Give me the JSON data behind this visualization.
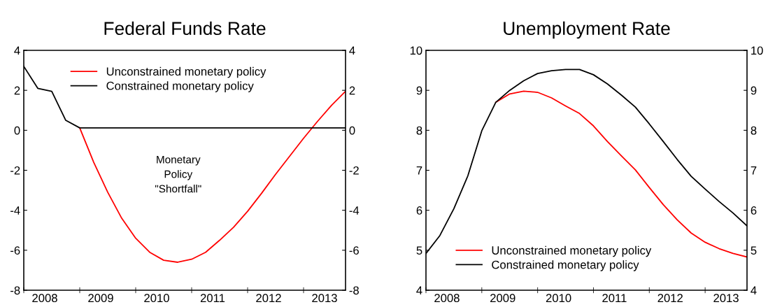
{
  "chart_data": [
    {
      "type": "line",
      "title": "Federal Funds Rate",
      "x": [
        2008,
        2008.25,
        2008.5,
        2008.75,
        2009,
        2009.25,
        2009.5,
        2009.75,
        2010,
        2010.25,
        2010.5,
        2010.75,
        2011,
        2011.25,
        2011.5,
        2011.75,
        2012,
        2012.25,
        2012.5,
        2012.75,
        2013,
        2013.25,
        2013.5,
        2013.75
      ],
      "series": [
        {
          "name": "Unconstrained monetary policy",
          "color": "#ff0000",
          "values": [
            null,
            null,
            null,
            null,
            0.12,
            -1.6,
            -3.1,
            -4.4,
            -5.4,
            -6.1,
            -6.5,
            -6.6,
            -6.45,
            -6.1,
            -5.5,
            -4.85,
            -4.05,
            -3.15,
            -2.2,
            -1.3,
            -0.4,
            0.45,
            1.25,
            1.95
          ]
        },
        {
          "name": "Constrained monetary policy",
          "color": "#000000",
          "values": [
            3.2,
            2.1,
            1.95,
            0.5,
            0.12,
            0.12,
            0.12,
            0.12,
            0.12,
            0.12,
            0.12,
            0.12,
            0.12,
            0.12,
            0.12,
            0.12,
            0.12,
            0.12,
            0.12,
            0.12,
            0.12,
            0.12,
            0.12,
            0.12
          ]
        }
      ],
      "xlim": [
        2008,
        2013.75
      ],
      "xticks": [
        {
          "value": 2008.375,
          "label": "2008"
        },
        {
          "value": 2009.375,
          "label": "2009"
        },
        {
          "value": 2010.375,
          "label": "2010"
        },
        {
          "value": 2011.375,
          "label": "2011"
        },
        {
          "value": 2012.375,
          "label": "2012"
        },
        {
          "value": 2013.375,
          "label": "2013"
        },
        {
          "value": 2008,
          "label": null
        },
        {
          "value": 2009,
          "label": null
        },
        {
          "value": 2010,
          "label": null
        },
        {
          "value": 2011,
          "label": null
        },
        {
          "value": 2012,
          "label": null
        },
        {
          "value": 2013,
          "label": null
        }
      ],
      "ylim": [
        -8,
        4
      ],
      "yticks": [
        -8,
        -6,
        -4,
        -2,
        0,
        2,
        4
      ],
      "y2lim": [
        -8,
        4
      ],
      "y2ticks": [
        -8,
        -6,
        -4,
        -2,
        0,
        2,
        4
      ],
      "annotations": [
        "Monetary\nPolicy\n\"Shortfall\""
      ],
      "legend": "top",
      "grid": false
    },
    {
      "type": "line",
      "title": "Unemployment Rate",
      "x": [
        2008,
        2008.25,
        2008.5,
        2008.75,
        2009,
        2009.25,
        2009.5,
        2009.75,
        2010,
        2010.25,
        2010.5,
        2010.75,
        2011,
        2011.25,
        2011.5,
        2011.75,
        2012,
        2012.25,
        2012.5,
        2012.75,
        2013,
        2013.25,
        2013.5,
        2013.75
      ],
      "series": [
        {
          "name": "Unconstrained monetary policy",
          "color": "#ff0000",
          "values": [
            null,
            null,
            null,
            null,
            null,
            8.7,
            8.91,
            8.98,
            8.95,
            8.81,
            8.61,
            8.42,
            8.11,
            7.72,
            7.36,
            7.01,
            6.57,
            6.14,
            5.76,
            5.43,
            5.2,
            5.04,
            4.92,
            4.83
          ]
        },
        {
          "name": "Constrained monetary policy",
          "color": "#000000",
          "values": [
            4.92,
            5.37,
            6.04,
            6.86,
            7.99,
            8.7,
            9.0,
            9.24,
            9.42,
            9.49,
            9.52,
            9.52,
            9.39,
            9.16,
            8.88,
            8.58,
            8.16,
            7.72,
            7.27,
            6.85,
            6.53,
            6.22,
            5.93,
            5.61
          ]
        }
      ],
      "xlim": [
        2008,
        2013.75
      ],
      "xticks": [
        {
          "value": 2008.375,
          "label": "2008"
        },
        {
          "value": 2009.375,
          "label": "2009"
        },
        {
          "value": 2010.375,
          "label": "2010"
        },
        {
          "value": 2011.375,
          "label": "2011"
        },
        {
          "value": 2012.375,
          "label": "2012"
        },
        {
          "value": 2013.375,
          "label": "2013"
        },
        {
          "value": 2008,
          "label": null
        },
        {
          "value": 2009,
          "label": null
        },
        {
          "value": 2010,
          "label": null
        },
        {
          "value": 2011,
          "label": null
        },
        {
          "value": 2012,
          "label": null
        },
        {
          "value": 2013,
          "label": null
        }
      ],
      "ylim": [
        4,
        10
      ],
      "yticks": [
        4,
        5,
        6,
        7,
        8,
        9,
        10
      ],
      "y2lim": [
        4,
        10
      ],
      "y2ticks": [
        4,
        5,
        6,
        7,
        8,
        9,
        10
      ],
      "legend": "bottom left",
      "grid": false
    }
  ]
}
